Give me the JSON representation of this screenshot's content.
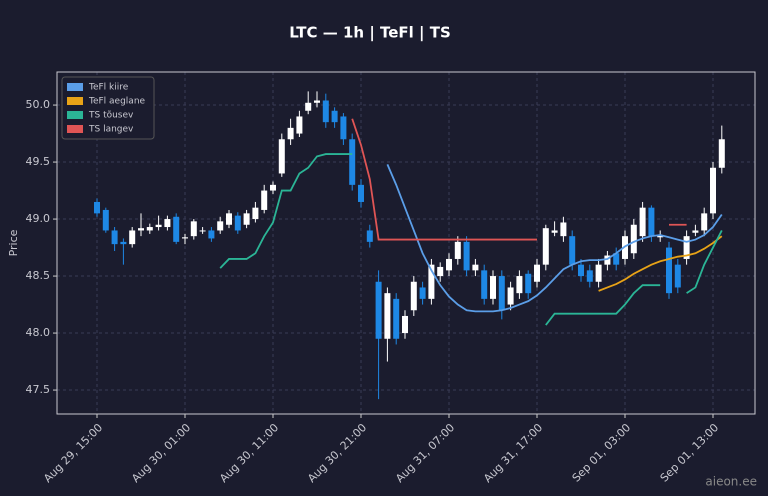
{
  "chart_data": {
    "type": "candlestick",
    "title": "LTC — 1h  |  TeFl  |  TS",
    "y_label": "Price",
    "watermark": "aieon.ee",
    "categories": [
      "Aug 29, 15:00",
      null,
      null,
      null,
      null,
      null,
      null,
      null,
      null,
      null,
      "Aug 30, 01:00",
      null,
      null,
      null,
      null,
      null,
      null,
      null,
      null,
      null,
      "Aug 30, 11:00",
      null,
      null,
      null,
      null,
      null,
      null,
      null,
      null,
      null,
      "Aug 30, 21:00",
      null,
      null,
      null,
      null,
      null,
      null,
      null,
      null,
      null,
      "Aug 31, 07:00",
      null,
      null,
      null,
      null,
      null,
      null,
      null,
      null,
      null,
      "Aug 31, 17:00",
      null,
      null,
      null,
      null,
      null,
      null,
      null,
      null,
      null,
      "Sep 01, 03:00",
      null,
      null,
      null,
      null,
      null,
      null,
      null,
      null,
      null,
      "Sep 01, 13:00",
      null
    ],
    "candles": {
      "up_color": "#ffffff",
      "down_color": "#1e88e5",
      "open": [
        49.15,
        49.08,
        48.9,
        48.8,
        48.78,
        48.9,
        48.9,
        48.93,
        48.93,
        49.02,
        48.83,
        48.85,
        48.9,
        48.9,
        48.9,
        48.95,
        49.03,
        48.95,
        49.0,
        49.08,
        49.25,
        49.4,
        49.7,
        49.75,
        49.95,
        50.02,
        50.04,
        49.95,
        49.9,
        49.7,
        49.3,
        48.9,
        48.45,
        47.95,
        48.3,
        48.0,
        48.2,
        48.4,
        48.3,
        48.5,
        48.55,
        48.65,
        48.8,
        48.55,
        48.55,
        48.3,
        48.5,
        48.25,
        48.35,
        48.52,
        48.45,
        48.6,
        48.88,
        48.85,
        48.85,
        48.6,
        48.55,
        48.45,
        48.6,
        48.7,
        48.65,
        48.7,
        48.85,
        49.1,
        48.84,
        48.75,
        48.6,
        48.65,
        48.88,
        48.9,
        49.05,
        49.45
      ],
      "high": [
        49.18,
        49.1,
        48.93,
        48.83,
        48.93,
        49.05,
        48.96,
        49.03,
        49.03,
        49.05,
        48.87,
        49.0,
        48.93,
        48.93,
        49.02,
        49.08,
        49.06,
        49.08,
        49.15,
        49.3,
        49.33,
        49.75,
        49.88,
        49.95,
        50.12,
        50.12,
        50.1,
        49.98,
        49.93,
        49.75,
        49.35,
        48.95,
        48.55,
        48.4,
        48.35,
        48.2,
        48.5,
        48.45,
        48.65,
        48.62,
        48.7,
        48.85,
        48.85,
        48.65,
        48.6,
        48.55,
        48.55,
        48.45,
        48.55,
        48.55,
        48.65,
        48.95,
        48.98,
        49.02,
        48.9,
        48.65,
        48.6,
        48.65,
        48.72,
        48.75,
        48.9,
        49.0,
        49.15,
        49.12,
        48.9,
        48.8,
        48.65,
        48.9,
        48.95,
        49.1,
        49.5,
        49.82
      ],
      "low": [
        49.02,
        48.88,
        48.72,
        48.6,
        48.75,
        48.85,
        48.87,
        48.9,
        48.9,
        48.78,
        48.78,
        48.82,
        48.87,
        48.8,
        48.87,
        48.92,
        48.87,
        48.92,
        48.97,
        49.05,
        49.22,
        49.37,
        49.65,
        49.72,
        49.92,
        49.98,
        49.8,
        49.8,
        49.65,
        49.25,
        49.1,
        48.75,
        47.42,
        47.75,
        47.9,
        47.95,
        48.15,
        48.25,
        48.25,
        48.45,
        48.5,
        48.6,
        48.5,
        48.5,
        48.25,
        48.25,
        48.12,
        48.2,
        48.3,
        48.3,
        48.4,
        48.55,
        48.85,
        48.8,
        48.55,
        48.45,
        48.4,
        48.4,
        48.55,
        48.55,
        48.6,
        48.65,
        48.8,
        48.8,
        48.8,
        48.3,
        48.35,
        48.6,
        48.85,
        48.85,
        49.0,
        49.4
      ],
      "close": [
        49.05,
        48.9,
        48.78,
        48.78,
        48.9,
        48.92,
        48.93,
        48.95,
        49.0,
        48.8,
        48.84,
        48.98,
        48.9,
        48.83,
        48.98,
        49.05,
        48.9,
        49.05,
        49.1,
        49.25,
        49.3,
        49.7,
        49.8,
        49.9,
        50.02,
        50.04,
        49.85,
        49.85,
        49.7,
        49.3,
        49.15,
        48.8,
        47.95,
        48.35,
        47.95,
        48.15,
        48.45,
        48.3,
        48.6,
        48.58,
        48.65,
        48.8,
        48.55,
        48.6,
        48.3,
        48.5,
        48.2,
        48.4,
        48.5,
        48.35,
        48.6,
        48.92,
        48.9,
        48.97,
        48.6,
        48.5,
        48.45,
        48.6,
        48.68,
        48.6,
        48.85,
        48.95,
        49.1,
        48.85,
        48.86,
        48.35,
        48.4,
        48.85,
        48.9,
        49.05,
        49.45,
        49.7
      ]
    },
    "series": [
      {
        "name": "TeFl kiire",
        "color": "#5b9ee8",
        "values": [
          null,
          null,
          null,
          null,
          null,
          null,
          null,
          null,
          null,
          null,
          null,
          null,
          null,
          null,
          null,
          null,
          null,
          null,
          null,
          null,
          null,
          null,
          null,
          null,
          null,
          null,
          null,
          null,
          null,
          null,
          null,
          null,
          null,
          49.48,
          49.3,
          49.1,
          48.9,
          48.7,
          48.55,
          48.42,
          48.32,
          48.25,
          48.2,
          48.19,
          48.19,
          48.19,
          48.2,
          48.22,
          48.25,
          48.28,
          48.33,
          48.4,
          48.48,
          48.56,
          48.6,
          48.63,
          48.64,
          48.64,
          48.65,
          48.7,
          48.76,
          48.8,
          48.83,
          48.85,
          48.86,
          48.84,
          48.82,
          48.8,
          48.82,
          48.86,
          48.93,
          49.04
        ]
      },
      {
        "name": "TeFl aeglane",
        "color": "#e8a317",
        "values": [
          null,
          null,
          null,
          null,
          null,
          null,
          null,
          null,
          null,
          null,
          null,
          null,
          null,
          null,
          null,
          null,
          null,
          null,
          null,
          null,
          null,
          null,
          null,
          null,
          null,
          null,
          null,
          null,
          null,
          null,
          null,
          null,
          null,
          null,
          null,
          null,
          null,
          null,
          null,
          null,
          null,
          null,
          null,
          null,
          null,
          null,
          null,
          null,
          null,
          null,
          null,
          null,
          null,
          null,
          null,
          null,
          null,
          48.37,
          48.4,
          48.43,
          48.47,
          48.52,
          48.56,
          48.6,
          48.63,
          48.65,
          48.67,
          48.68,
          48.7,
          48.74,
          48.79,
          48.85
        ]
      },
      {
        "name": "TS tõusev",
        "color": "#2bb596",
        "values": [
          null,
          null,
          null,
          null,
          null,
          null,
          null,
          null,
          null,
          null,
          null,
          null,
          null,
          null,
          48.57,
          48.65,
          48.65,
          48.65,
          48.7,
          48.85,
          48.97,
          49.25,
          49.25,
          49.4,
          49.45,
          49.55,
          49.57,
          49.57,
          49.57,
          49.57,
          null,
          null,
          null,
          null,
          null,
          null,
          null,
          null,
          null,
          null,
          null,
          null,
          null,
          null,
          null,
          null,
          null,
          null,
          null,
          null,
          null,
          48.07,
          48.17,
          48.17,
          48.17,
          48.17,
          48.17,
          48.17,
          48.17,
          48.17,
          48.25,
          48.35,
          48.42,
          48.42,
          48.42,
          null,
          null,
          48.35,
          48.4,
          48.6,
          48.75,
          48.9
        ]
      },
      {
        "name": "TS langev",
        "color": "#e05555",
        "values": [
          null,
          null,
          null,
          null,
          null,
          null,
          null,
          null,
          null,
          null,
          null,
          null,
          null,
          null,
          null,
          null,
          null,
          null,
          null,
          null,
          null,
          null,
          null,
          null,
          null,
          null,
          null,
          null,
          null,
          49.88,
          49.65,
          49.35,
          48.82,
          48.82,
          48.82,
          48.82,
          48.82,
          48.82,
          48.82,
          48.82,
          48.82,
          48.82,
          48.82,
          48.82,
          48.82,
          48.82,
          48.82,
          48.82,
          48.82,
          48.82,
          48.82,
          null,
          null,
          null,
          null,
          null,
          null,
          null,
          null,
          null,
          null,
          null,
          null,
          null,
          null,
          48.95,
          48.95,
          48.95,
          null,
          null,
          null,
          null
        ]
      }
    ],
    "ylim": [
      47.29,
      50.29
    ],
    "yticks": [
      47.5,
      {
        "value": 48,
        "label": "48.0"
      },
      48.5,
      {
        "value": 49,
        "label": "49.0"
      },
      49.5,
      {
        "value": 50,
        "label": "50.0"
      }
    ],
    "grid": true,
    "legend": "upper left"
  }
}
